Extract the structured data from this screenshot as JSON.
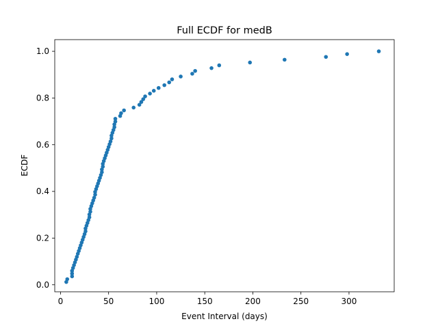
{
  "chart_data": {
    "type": "scatter",
    "title": "Full ECDF for medB",
    "xlabel": "Event Interval (days)",
    "ylabel": "ECDF",
    "xlim": [
      -6,
      347
    ],
    "ylim": [
      -0.03,
      1.05
    ],
    "xticks": [
      0,
      50,
      100,
      150,
      200,
      250,
      300
    ],
    "yticks": [
      0.0,
      0.2,
      0.4,
      0.6,
      0.8,
      1.0
    ],
    "ytick_labels": [
      "0.0",
      "0.2",
      "0.4",
      "0.6",
      "0.8",
      "1.0"
    ],
    "grid": false,
    "marker_color": "#1f77b4",
    "series": [
      {
        "x": [
          6,
          7,
          12,
          12,
          12,
          13,
          14,
          15,
          16,
          17,
          18,
          19,
          20,
          21,
          22,
          23,
          24,
          25,
          26,
          26,
          27,
          28,
          29,
          30,
          30,
          31,
          31,
          32,
          33,
          34,
          35,
          36,
          36,
          37,
          38,
          39,
          40,
          41,
          42,
          43,
          43,
          44,
          44,
          45,
          46,
          47,
          48,
          49,
          50,
          51,
          52,
          53,
          53,
          54,
          55,
          56,
          56,
          57,
          57,
          62,
          63,
          66,
          76,
          82,
          84,
          86,
          88,
          93,
          97,
          102,
          108,
          113,
          116,
          125,
          137,
          140,
          157,
          165,
          197,
          233,
          276,
          298,
          331
        ],
        "y": [
          0.012,
          0.024,
          0.036,
          0.048,
          0.06,
          0.072,
          0.084,
          0.096,
          0.108,
          0.12,
          0.133,
          0.145,
          0.157,
          0.169,
          0.181,
          0.193,
          0.205,
          0.217,
          0.229,
          0.241,
          0.253,
          0.265,
          0.277,
          0.289,
          0.301,
          0.313,
          0.325,
          0.337,
          0.349,
          0.361,
          0.373,
          0.386,
          0.398,
          0.41,
          0.422,
          0.434,
          0.446,
          0.458,
          0.47,
          0.482,
          0.494,
          0.506,
          0.518,
          0.53,
          0.542,
          0.554,
          0.566,
          0.578,
          0.59,
          0.602,
          0.614,
          0.627,
          0.639,
          0.651,
          0.663,
          0.675,
          0.687,
          0.699,
          0.711,
          0.723,
          0.735,
          0.747,
          0.759,
          0.771,
          0.783,
          0.795,
          0.807,
          0.819,
          0.831,
          0.843,
          0.855,
          0.867,
          0.88,
          0.892,
          0.904,
          0.916,
          0.928,
          0.94,
          0.952,
          0.964,
          0.976,
          0.988,
          1.0
        ]
      }
    ]
  }
}
